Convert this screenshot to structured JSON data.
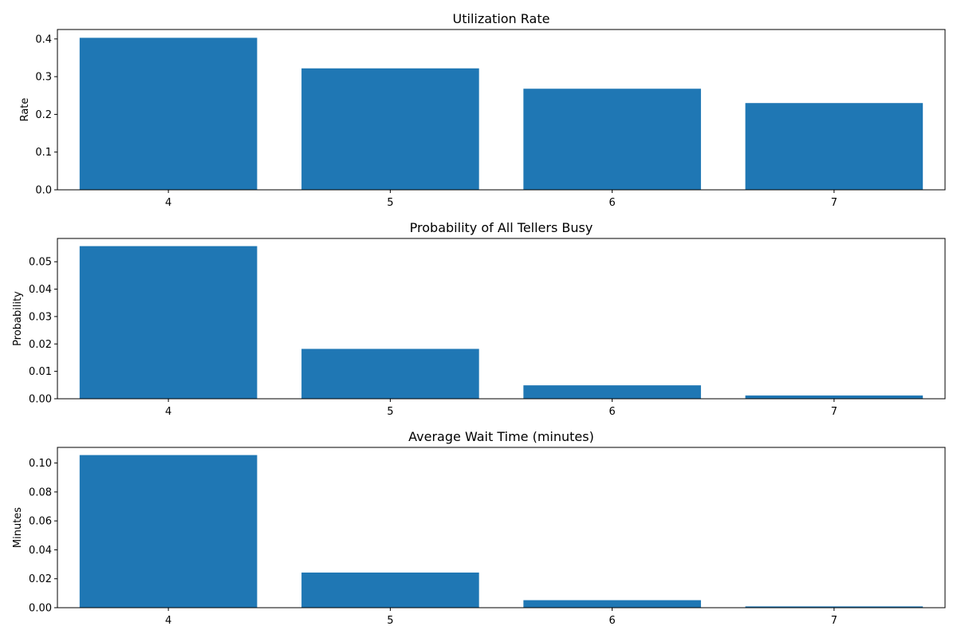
{
  "chart_data": [
    {
      "type": "bar",
      "title": "Utilization Rate",
      "xlabel": "",
      "ylabel": "Rate",
      "categories": [
        "4",
        "5",
        "6",
        "7"
      ],
      "values": [
        0.403,
        0.322,
        0.268,
        0.23
      ],
      "ylim": [
        0,
        0.425
      ],
      "yticks": [
        0.0,
        0.1,
        0.2,
        0.3,
        0.4
      ],
      "ytick_labels": [
        "0.0",
        "0.1",
        "0.2",
        "0.3",
        "0.4"
      ],
      "bar_color": "#1f77b4",
      "grid": false,
      "legend": "none"
    },
    {
      "type": "bar",
      "title": "Probability of All Tellers Busy",
      "xlabel": "",
      "ylabel": "Probability",
      "categories": [
        "4",
        "5",
        "6",
        "7"
      ],
      "values": [
        0.0557,
        0.0182,
        0.0049,
        0.0012
      ],
      "ylim": [
        0,
        0.0585
      ],
      "yticks": [
        0.0,
        0.01,
        0.02,
        0.03,
        0.04,
        0.05
      ],
      "ytick_labels": [
        "0.00",
        "0.01",
        "0.02",
        "0.03",
        "0.04",
        "0.05"
      ],
      "bar_color": "#1f77b4",
      "grid": false,
      "legend": "none"
    },
    {
      "type": "bar",
      "title": "Average Wait Time (minutes)",
      "xlabel": "",
      "ylabel": "Minutes",
      "categories": [
        "4",
        "5",
        "6",
        "7"
      ],
      "values": [
        0.1055,
        0.0243,
        0.0052,
        0.0009
      ],
      "ylim": [
        0,
        0.1108
      ],
      "yticks": [
        0.0,
        0.02,
        0.04,
        0.06,
        0.08,
        0.1
      ],
      "ytick_labels": [
        "0.00",
        "0.02",
        "0.04",
        "0.06",
        "0.08",
        "0.10"
      ],
      "bar_color": "#1f77b4",
      "grid": false,
      "legend": "none"
    }
  ]
}
